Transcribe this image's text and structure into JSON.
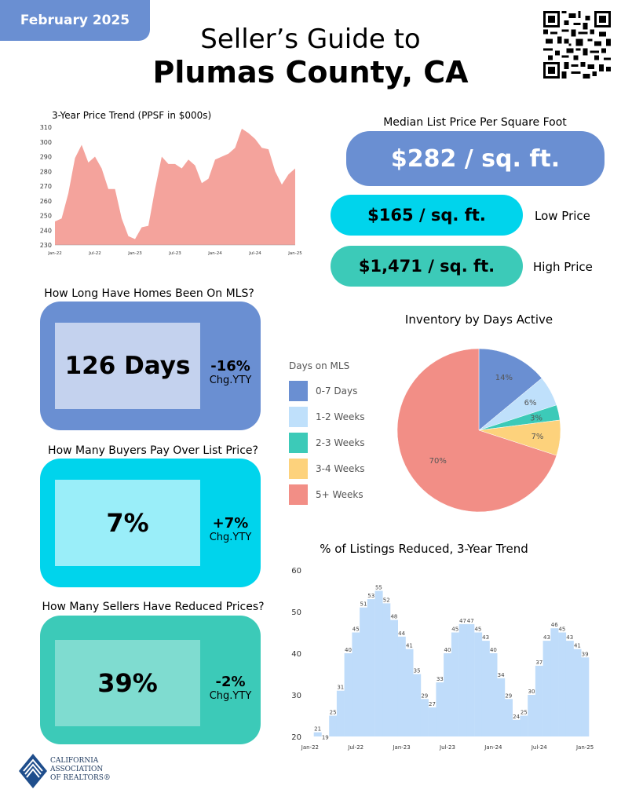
{
  "header": {
    "date": "February 2025",
    "title_line1": "Seller’s Guide to",
    "title_line2": "Plumas County, CA"
  },
  "price_trend": {
    "title": "3-Year Price Trend (PPSF in $000s)",
    "chart_data": {
      "type": "area",
      "title": "3-Year Price Trend (PPSF in $000s)",
      "ylim": [
        230,
        310
      ],
      "yticks": [
        230,
        240,
        250,
        260,
        270,
        280,
        290,
        300,
        310
      ],
      "xtick_labels": [
        "Jan-22",
        "Jul-22",
        "Jan-23",
        "Jul-23",
        "Jan-24",
        "Jul-24",
        "Jan-25"
      ],
      "xtick_indices": [
        0,
        6,
        12,
        18,
        24,
        30,
        36
      ],
      "values": [
        246,
        248,
        265,
        289,
        298,
        286,
        290,
        282,
        268,
        268,
        248,
        236,
        234,
        242,
        243,
        268,
        290,
        285,
        285,
        282,
        288,
        284,
        272,
        275,
        288,
        290,
        292,
        296,
        309,
        306,
        302,
        296,
        295,
        280,
        271,
        278,
        282
      ],
      "color": "#f4a39c"
    }
  },
  "median_ppsf": {
    "title": "Median List Price Per Square Foot",
    "value": "$282 / sq. ft.",
    "low_value": "$165 / sq. ft.",
    "low_label": "Low Price",
    "high_value": "$1,471 / sq. ft.",
    "high_label": "High Price"
  },
  "dom": {
    "question": "How Long Have Homes Been On MLS?",
    "value": "126 Days",
    "change": "-16%",
    "change_label": "Chg.YTY"
  },
  "over_list": {
    "question": "How Many Buyers Pay Over List Price?",
    "value": "7%",
    "change": "+7%",
    "change_label": "Chg.YTY"
  },
  "reduced": {
    "question": "How Many Sellers Have Reduced Prices?",
    "value": "39%",
    "change": "-2%",
    "change_label": "Chg.YTY"
  },
  "inventory": {
    "title": "Inventory by Days Active",
    "legend_title": "Days on MLS",
    "chart_data": {
      "type": "pie",
      "title": "Inventory by Days Active",
      "slices": [
        {
          "label": "0-7 Days",
          "value": 14,
          "display": "14%",
          "color": "#6a8fd2"
        },
        {
          "label": "1-2 Weeks",
          "value": 6,
          "display": "6%",
          "color": "#bfe0fb"
        },
        {
          "label": "2-3 Weeks",
          "value": 3,
          "display": "3%",
          "color": "#3ccab8"
        },
        {
          "label": "3-4 Weeks",
          "value": 7,
          "display": "7%",
          "color": "#fdd27c"
        },
        {
          "label": "5+ Weeks",
          "value": 70,
          "display": "70%",
          "color": "#f28e86"
        }
      ]
    }
  },
  "listings_reduced": {
    "title": "% of Listings Reduced, 3-Year Trend",
    "chart_data": {
      "type": "bar",
      "title": "% of Listings Reduced, 3-Year Trend",
      "ylim": [
        20,
        60
      ],
      "yticks": [
        20,
        30,
        40,
        50,
        60
      ],
      "xtick_labels": [
        "Jan-22",
        "Jul-22",
        "Jan-23",
        "Jul-23",
        "Jan-24",
        "Jul-24",
        "Jan-25"
      ],
      "xtick_indices": [
        0,
        6,
        12,
        18,
        24,
        30,
        36
      ],
      "values": [
        null,
        21,
        19,
        25,
        31,
        40,
        45,
        51,
        53,
        55,
        52,
        48,
        44,
        41,
        35,
        29,
        27,
        33,
        40,
        45,
        47,
        47,
        45,
        43,
        40,
        34,
        29,
        24,
        25,
        30,
        37,
        43,
        46,
        45,
        43,
        41,
        39
      ],
      "color": "#bfdcfa"
    }
  },
  "logo": {
    "line1": "CALIFORNIA",
    "line2": "ASSOCIATION",
    "line3": "OF REALTORS®"
  },
  "colors": {
    "blue": "#6a8fd2",
    "cyan": "#00d4ec",
    "teal": "#3ccab8",
    "salmon": "#f4a39c",
    "light_blue_bar": "#bfdcfa"
  }
}
